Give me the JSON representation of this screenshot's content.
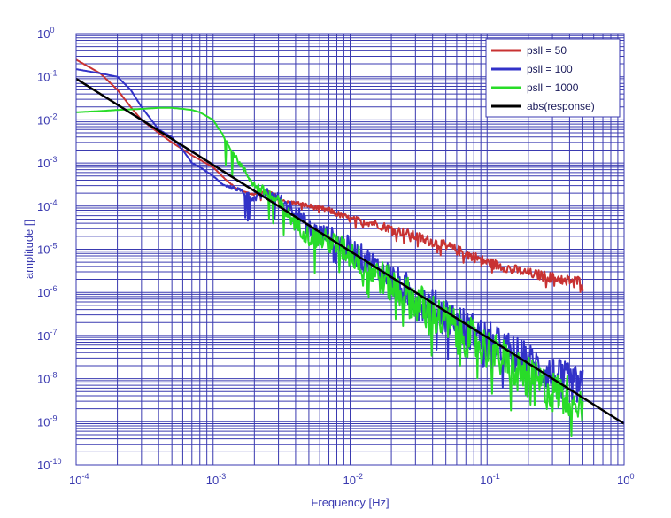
{
  "chart_data": {
    "type": "line",
    "title": "",
    "xlabel": "Frequency  [Hz]",
    "ylabel": "amplitude  []",
    "xscale": "log",
    "yscale": "log",
    "xlim": [
      0.0001,
      1
    ],
    "ylim": [
      1e-10,
      1
    ],
    "grid": "major and minor",
    "x_ticks": [
      {
        "base": "10",
        "exp": "-4",
        "value": 0.0001
      },
      {
        "base": "10",
        "exp": "-3",
        "value": 0.001
      },
      {
        "base": "10",
        "exp": "-2",
        "value": 0.01
      },
      {
        "base": "10",
        "exp": "-1",
        "value": 0.1
      },
      {
        "base": "10",
        "exp": "0",
        "value": 1
      }
    ],
    "y_ticks": [
      {
        "base": "10",
        "exp": "0",
        "value": 1
      },
      {
        "base": "10",
        "exp": "-1",
        "value": 0.1
      },
      {
        "base": "10",
        "exp": "-2",
        "value": 0.01
      },
      {
        "base": "10",
        "exp": "-3",
        "value": 0.001
      },
      {
        "base": "10",
        "exp": "-4",
        "value": 0.0001
      },
      {
        "base": "10",
        "exp": "-5",
        "value": 1e-05
      },
      {
        "base": "10",
        "exp": "-6",
        "value": 1e-06
      },
      {
        "base": "10",
        "exp": "-7",
        "value": 1e-07
      },
      {
        "base": "10",
        "exp": "-8",
        "value": 1e-08
      },
      {
        "base": "10",
        "exp": "-9",
        "value": 1e-09
      },
      {
        "base": "10",
        "exp": "-10",
        "value": 1e-10
      }
    ],
    "legend_position": "top-right",
    "series": [
      {
        "name": "psll = 50",
        "color": "#c83232",
        "noise": 0.12,
        "x": [
          0.0001,
          0.00015,
          0.0002,
          0.00025,
          0.0003,
          0.0004,
          0.0005,
          0.0007,
          0.001,
          0.0012,
          0.0015,
          0.002,
          0.0025,
          0.003,
          0.0035,
          0.004,
          0.005,
          0.007,
          0.01,
          0.015,
          0.02,
          0.03,
          0.05,
          0.07,
          0.1,
          0.15,
          0.2,
          0.3,
          0.4,
          0.5
        ],
        "y": [
          0.25,
          0.12,
          0.05,
          0.02,
          0.01,
          0.005,
          0.003,
          0.0015,
          0.0008,
          0.00045,
          0.00025,
          0.00018,
          0.00022,
          0.00016,
          0.00012,
          0.00012,
          0.0001,
          8e-05,
          5e-05,
          4e-05,
          3e-05,
          2e-05,
          1.2e-05,
          8e-06,
          5e-06,
          3.5e-06,
          2.8e-06,
          2.2e-06,
          1.9e-06,
          1.8e-06
        ]
      },
      {
        "name": "psll = 100",
        "color": "#3232c8",
        "noise": 0.45,
        "x": [
          0.0001,
          0.00015,
          0.0002,
          0.00025,
          0.0003,
          0.0004,
          0.0005,
          0.0006,
          0.0007,
          0.0008,
          0.001,
          0.0012,
          0.0015,
          0.002,
          0.0025,
          0.003,
          0.004,
          0.005,
          0.007,
          0.01,
          0.015,
          0.02,
          0.03,
          0.05,
          0.07,
          0.1,
          0.15,
          0.2,
          0.3,
          0.4,
          0.5
        ],
        "y": [
          0.15,
          0.12,
          0.1,
          0.05,
          0.02,
          0.006,
          0.004,
          0.002,
          0.001,
          0.0008,
          0.0005,
          0.0003,
          0.00025,
          0.00015,
          0.0002,
          0.00015,
          8e-05,
          3e-05,
          2e-05,
          1e-05,
          4e-06,
          2e-06,
          8e-07,
          3e-07,
          1.5e-07,
          8e-08,
          4e-08,
          2.5e-08,
          1.2e-08,
          8e-09,
          6e-09
        ]
      },
      {
        "name": "psll = 1000",
        "color": "#28dc28",
        "noise": 0.5,
        "x": [
          0.0001,
          0.00015,
          0.0002,
          0.0003,
          0.0004,
          0.0005,
          0.0006,
          0.0007,
          0.0008,
          0.001,
          0.0012,
          0.0015,
          0.002,
          0.0025,
          0.003,
          0.004,
          0.005,
          0.007,
          0.01,
          0.015,
          0.02,
          0.03,
          0.05,
          0.07,
          0.1,
          0.15,
          0.2,
          0.3,
          0.4,
          0.5
        ],
        "y": [
          0.015,
          0.016,
          0.017,
          0.018,
          0.019,
          0.019,
          0.018,
          0.017,
          0.015,
          0.01,
          0.004,
          0.0012,
          0.0003,
          0.0002,
          0.00012,
          4e-05,
          2e-05,
          1.5e-05,
          8e-06,
          3e-06,
          1.5e-06,
          6e-07,
          2e-07,
          1e-07,
          5e-08,
          2e-08,
          1e-08,
          5e-09,
          4e-09,
          3e-09
        ]
      },
      {
        "name": "abs(response)",
        "color": "#000000",
        "noise": 0,
        "x": [
          0.0001,
          1
        ],
        "y": [
          0.09,
          9e-10
        ]
      }
    ]
  }
}
